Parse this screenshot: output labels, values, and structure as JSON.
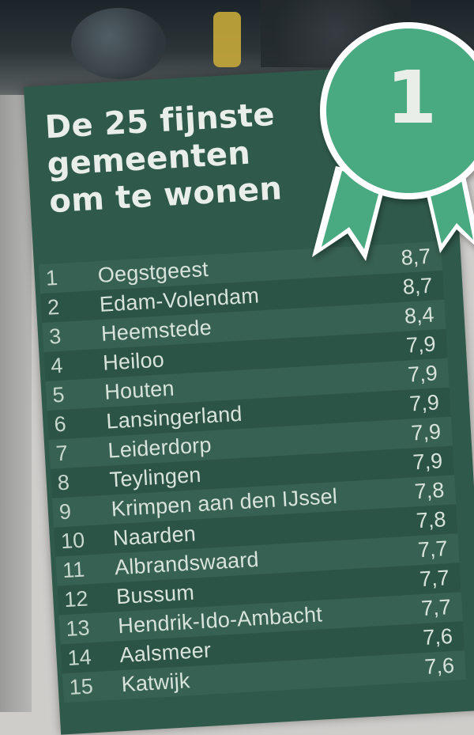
{
  "title": {
    "line1": "De 25 fijnste",
    "line2": "gemeenten",
    "line3": "om te wonen"
  },
  "badge": {
    "number": "1",
    "color": "#48a981"
  },
  "colors": {
    "panel": "#2f5a4b",
    "text": "#d8e3dc"
  },
  "ranking": [
    {
      "rank": "1",
      "name": "Oegstgeest",
      "score": "8,7"
    },
    {
      "rank": "2",
      "name": "Edam-Volendam",
      "score": "8,7"
    },
    {
      "rank": "3",
      "name": "Heemstede",
      "score": "8,4"
    },
    {
      "rank": "4",
      "name": "Heiloo",
      "score": "7,9"
    },
    {
      "rank": "5",
      "name": "Houten",
      "score": "7,9"
    },
    {
      "rank": "6",
      "name": "Lansingerland",
      "score": "7,9"
    },
    {
      "rank": "7",
      "name": "Leiderdorp",
      "score": "7,9"
    },
    {
      "rank": "8",
      "name": "Teylingen",
      "score": "7,9"
    },
    {
      "rank": "9",
      "name": "Krimpen aan den IJssel",
      "score": "7,8"
    },
    {
      "rank": "10",
      "name": "Naarden",
      "score": "7,8"
    },
    {
      "rank": "11",
      "name": "Albrandswaard",
      "score": "7,7"
    },
    {
      "rank": "12",
      "name": "Bussum",
      "score": "7,7"
    },
    {
      "rank": "13",
      "name": "Hendrik-Ido-Ambacht",
      "score": "7,7"
    },
    {
      "rank": "14",
      "name": "Aalsmeer",
      "score": "7,6"
    },
    {
      "rank": "15",
      "name": "Katwijk",
      "score": "7,6"
    }
  ]
}
